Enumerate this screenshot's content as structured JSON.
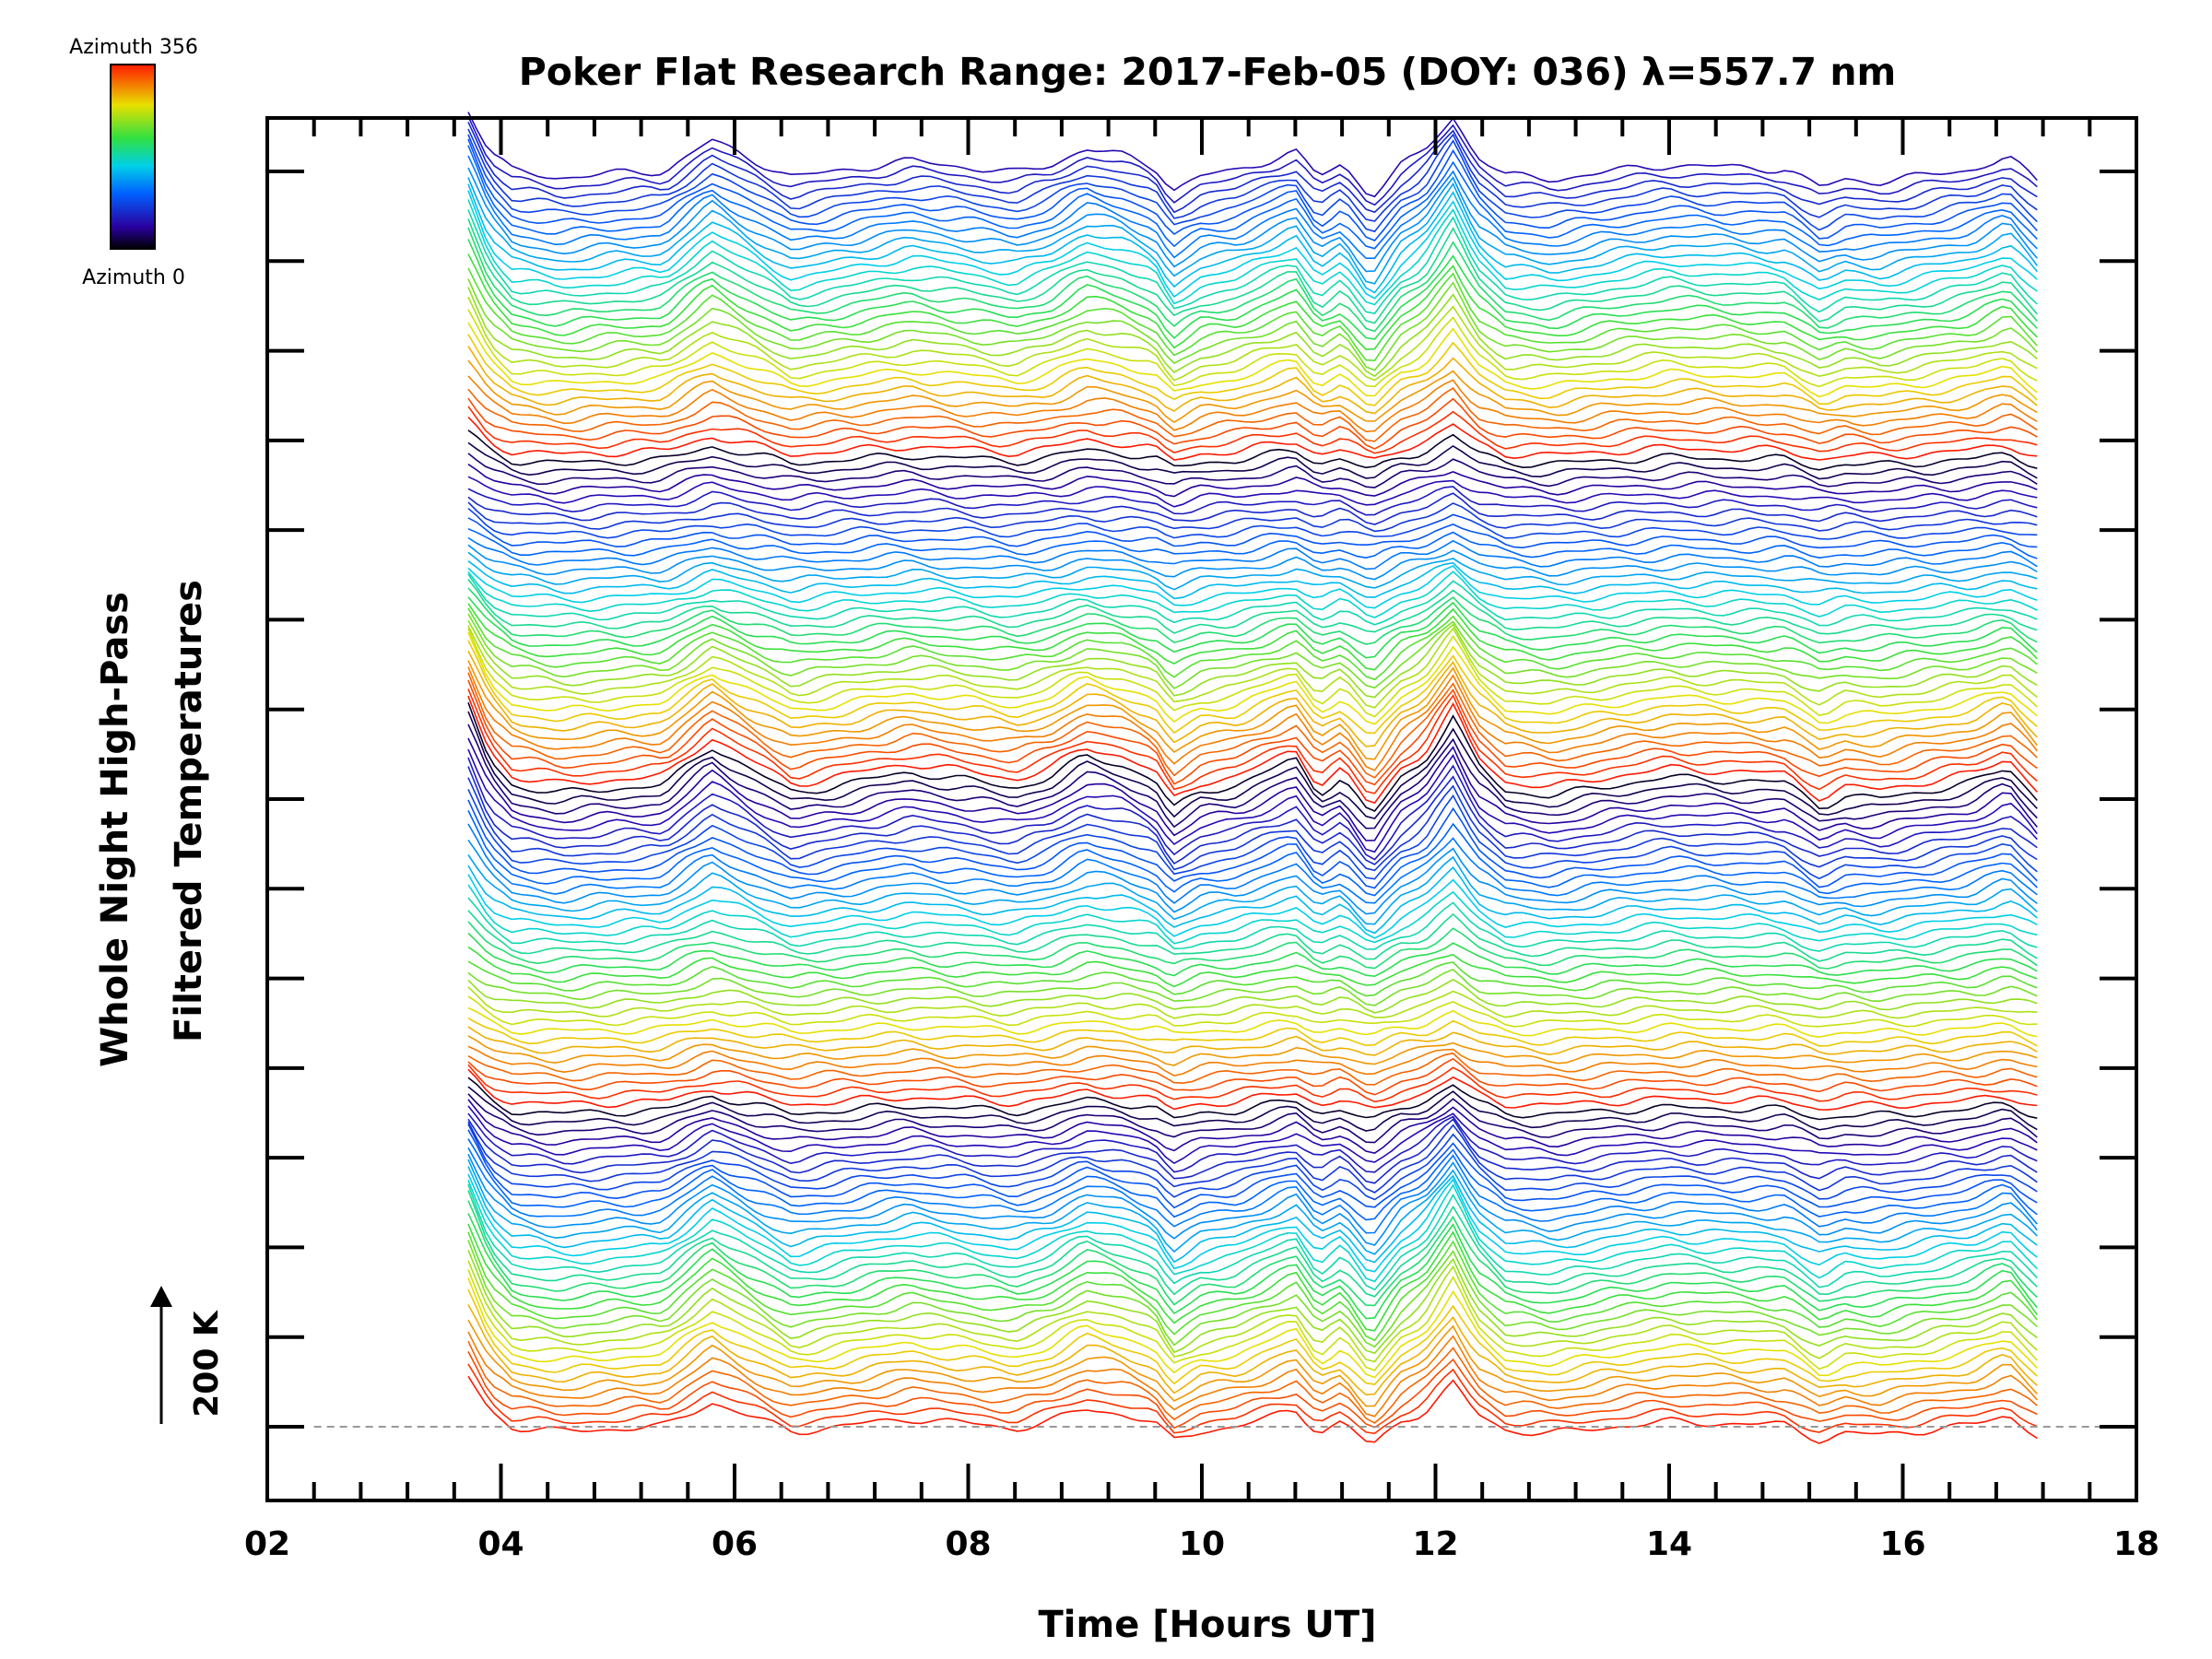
{
  "chart_data": {
    "type": "line",
    "title": "Poker Flat Research Range: 2017-Feb-05 (DOY: 036) λ=557.7 nm",
    "xlabel": "Time [Hours UT]",
    "ylabel_lines": [
      "Whole Night High-Pass",
      "Filtered Temperatures"
    ],
    "xlim": [
      2,
      18
    ],
    "x_tick_labels": [
      "02",
      "04",
      "06",
      "08",
      "10",
      "12",
      "14",
      "16",
      "18"
    ],
    "x_ticks": [
      2,
      4,
      6,
      8,
      10,
      12,
      14,
      16,
      18
    ],
    "y_tick_count": 15,
    "scale_bar_label": "200 K",
    "baseline": "dashed at bottom trace",
    "colorbar": {
      "top_label": "Azimuth 356",
      "bottom_label": "Azimuth 0",
      "min": 0,
      "max": 356,
      "colormap": "rainbow (black → blue → cyan → green → yellow → red)"
    },
    "series_description": "Stacked high-pass filtered temperature traces, one per azimuth, offset vertically; color encodes azimuth",
    "time_range": [
      3.72,
      17.15
    ],
    "trace_count": 140,
    "common_profile": {
      "x": [
        3.72,
        3.9,
        4.1,
        4.5,
        5.0,
        5.4,
        5.8,
        6.1,
        6.5,
        7.0,
        7.5,
        8.0,
        8.4,
        8.7,
        9.0,
        9.3,
        9.6,
        9.75,
        10.0,
        10.3,
        10.5,
        10.8,
        11.0,
        11.2,
        11.45,
        11.7,
        11.9,
        12.15,
        12.35,
        12.6,
        13.0,
        13.5,
        14.0,
        14.5,
        15.0,
        15.3,
        15.5,
        15.8,
        16.2,
        16.6,
        16.9,
        17.15
      ],
      "y": [
        60,
        20,
        0,
        -6,
        -2,
        0,
        30,
        14,
        -6,
        2,
        10,
        4,
        -2,
        6,
        22,
        16,
        4,
        -18,
        -4,
        0,
        8,
        20,
        -6,
        6,
        -24,
        6,
        18,
        52,
        16,
        -4,
        -8,
        0,
        6,
        4,
        2,
        -16,
        -8,
        -10,
        -4,
        2,
        14,
        -10
      ]
    }
  }
}
